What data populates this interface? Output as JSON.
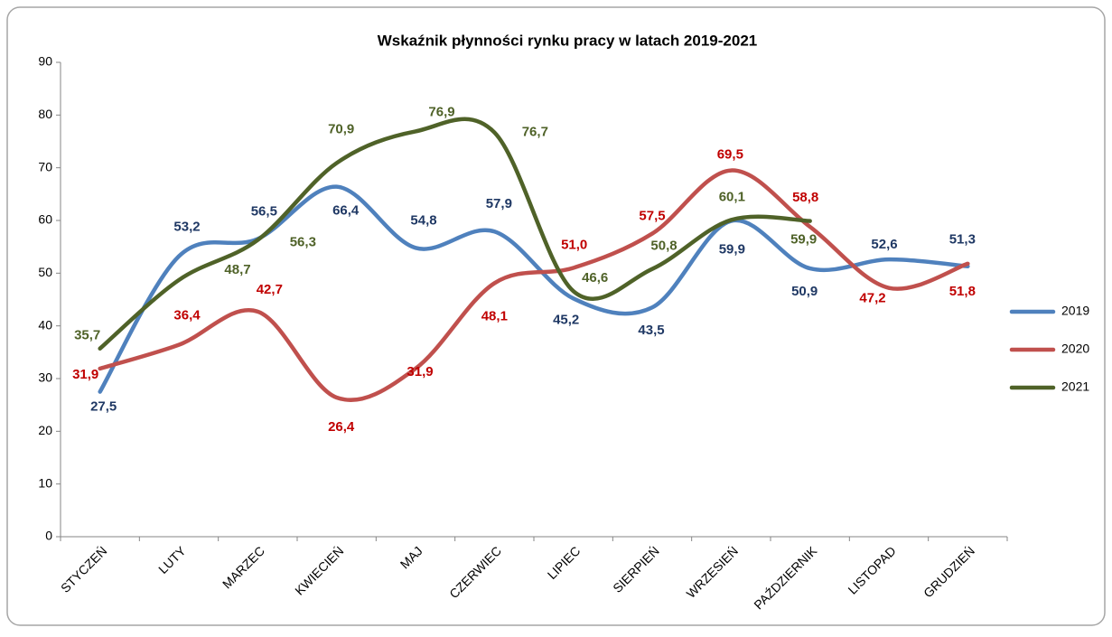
{
  "chart_data": {
    "type": "line",
    "title": "Wskaźnik płynności rynku pracy w latach 2019-2021",
    "categories": [
      "STYCZEŃ",
      "LUTY",
      "MARZEC",
      "KWIECIEŃ",
      "MAJ",
      "CZERWIEC",
      "LIPIEC",
      "SIERPIEŃ",
      "WRZESIEŃ",
      "PAŹDZIERNIK",
      "LISTOPAD",
      "GRUDZIEŃ"
    ],
    "series": [
      {
        "name": "2019",
        "color": "#4f81bd",
        "label_color": "#1f3864",
        "values": [
          27.5,
          53.2,
          56.5,
          66.4,
          54.8,
          57.9,
          45.2,
          43.5,
          59.9,
          50.9,
          52.6,
          51.3
        ],
        "value_labels": [
          "27,5",
          "53,2",
          "56,5",
          "66,4",
          "54,8",
          "57,9",
          "45,2",
          "43,5",
          "59,9",
          "50,9",
          "52,6",
          "51,3"
        ]
      },
      {
        "name": "2020",
        "color": "#c0504d",
        "label_color": "#c00000",
        "values": [
          31.9,
          36.4,
          42.7,
          26.4,
          31.9,
          48.1,
          51.0,
          57.5,
          69.5,
          58.8,
          47.2,
          51.8
        ],
        "value_labels": [
          "31,9",
          "36,4",
          "42,7",
          "26,4",
          "31,9",
          "48,1",
          "51,0",
          "57,5",
          "69,5",
          "58,8",
          "47,2",
          "51,8"
        ]
      },
      {
        "name": "2021",
        "color": "#4f6228",
        "label_color": "#4f6228",
        "values": [
          35.7,
          48.7,
          56.3,
          70.9,
          76.9,
          76.7,
          46.6,
          50.8,
          60.1,
          59.9,
          null,
          null
        ],
        "value_labels": [
          "35,7",
          "48,7",
          "56,3",
          "70,9",
          "76,9",
          "76,7",
          "46,6",
          "50,8",
          "60,1",
          "59,9",
          null,
          null
        ]
      }
    ],
    "ylim": [
      0,
      90
    ],
    "yticks": [
      0,
      10,
      20,
      30,
      40,
      50,
      60,
      70,
      80,
      90
    ],
    "grid": false,
    "legend": "right",
    "smooth": true
  }
}
